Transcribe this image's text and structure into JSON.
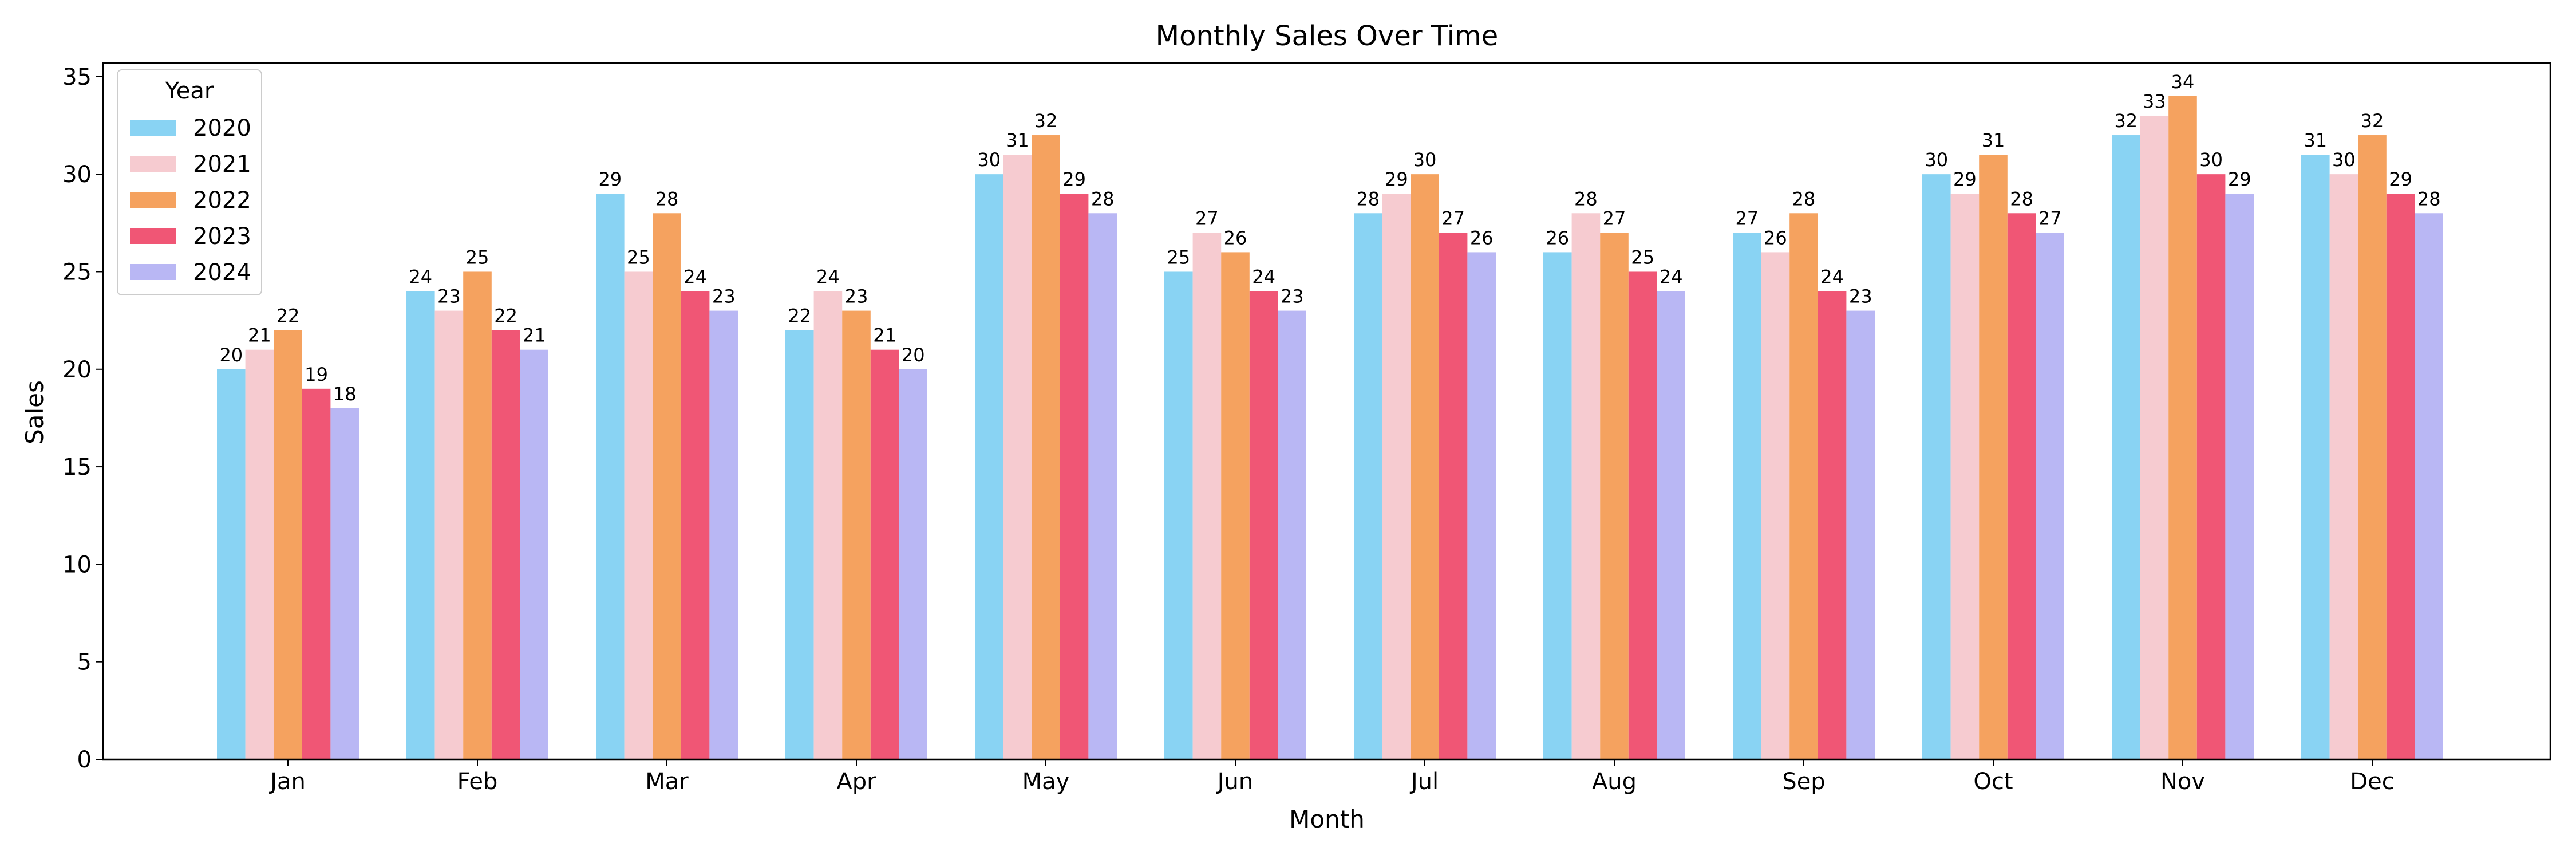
{
  "chart_data": {
    "type": "bar",
    "title": "Monthly Sales Over Time",
    "xlabel": "Month",
    "ylabel": "Sales",
    "ylim": [
      0,
      35.7
    ],
    "yticks": [
      0,
      5,
      10,
      15,
      20,
      25,
      30,
      35
    ],
    "categories": [
      "Jan",
      "Feb",
      "Mar",
      "Apr",
      "May",
      "Jun",
      "Jul",
      "Aug",
      "Sep",
      "Oct",
      "Nov",
      "Dec"
    ],
    "legend": {
      "title": "Year",
      "placement": "top-left"
    },
    "series": [
      {
        "name": "2020",
        "color": "#89d3f3",
        "values": [
          20,
          24,
          29,
          22,
          30,
          25,
          28,
          26,
          27,
          30,
          32,
          31
        ]
      },
      {
        "name": "2021",
        "color": "#f6cbd0",
        "values": [
          21,
          23,
          25,
          24,
          31,
          27,
          29,
          28,
          26,
          29,
          33,
          30
        ]
      },
      {
        "name": "2022",
        "color": "#f5a25f",
        "values": [
          22,
          25,
          28,
          23,
          32,
          26,
          30,
          27,
          28,
          31,
          34,
          32
        ]
      },
      {
        "name": "2023",
        "color": "#f05675",
        "values": [
          19,
          22,
          24,
          21,
          29,
          24,
          27,
          25,
          24,
          28,
          30,
          29
        ]
      },
      {
        "name": "2024",
        "color": "#b9b7f4",
        "values": [
          18,
          21,
          23,
          20,
          28,
          23,
          26,
          24,
          23,
          27,
          29,
          28
        ]
      }
    ]
  }
}
